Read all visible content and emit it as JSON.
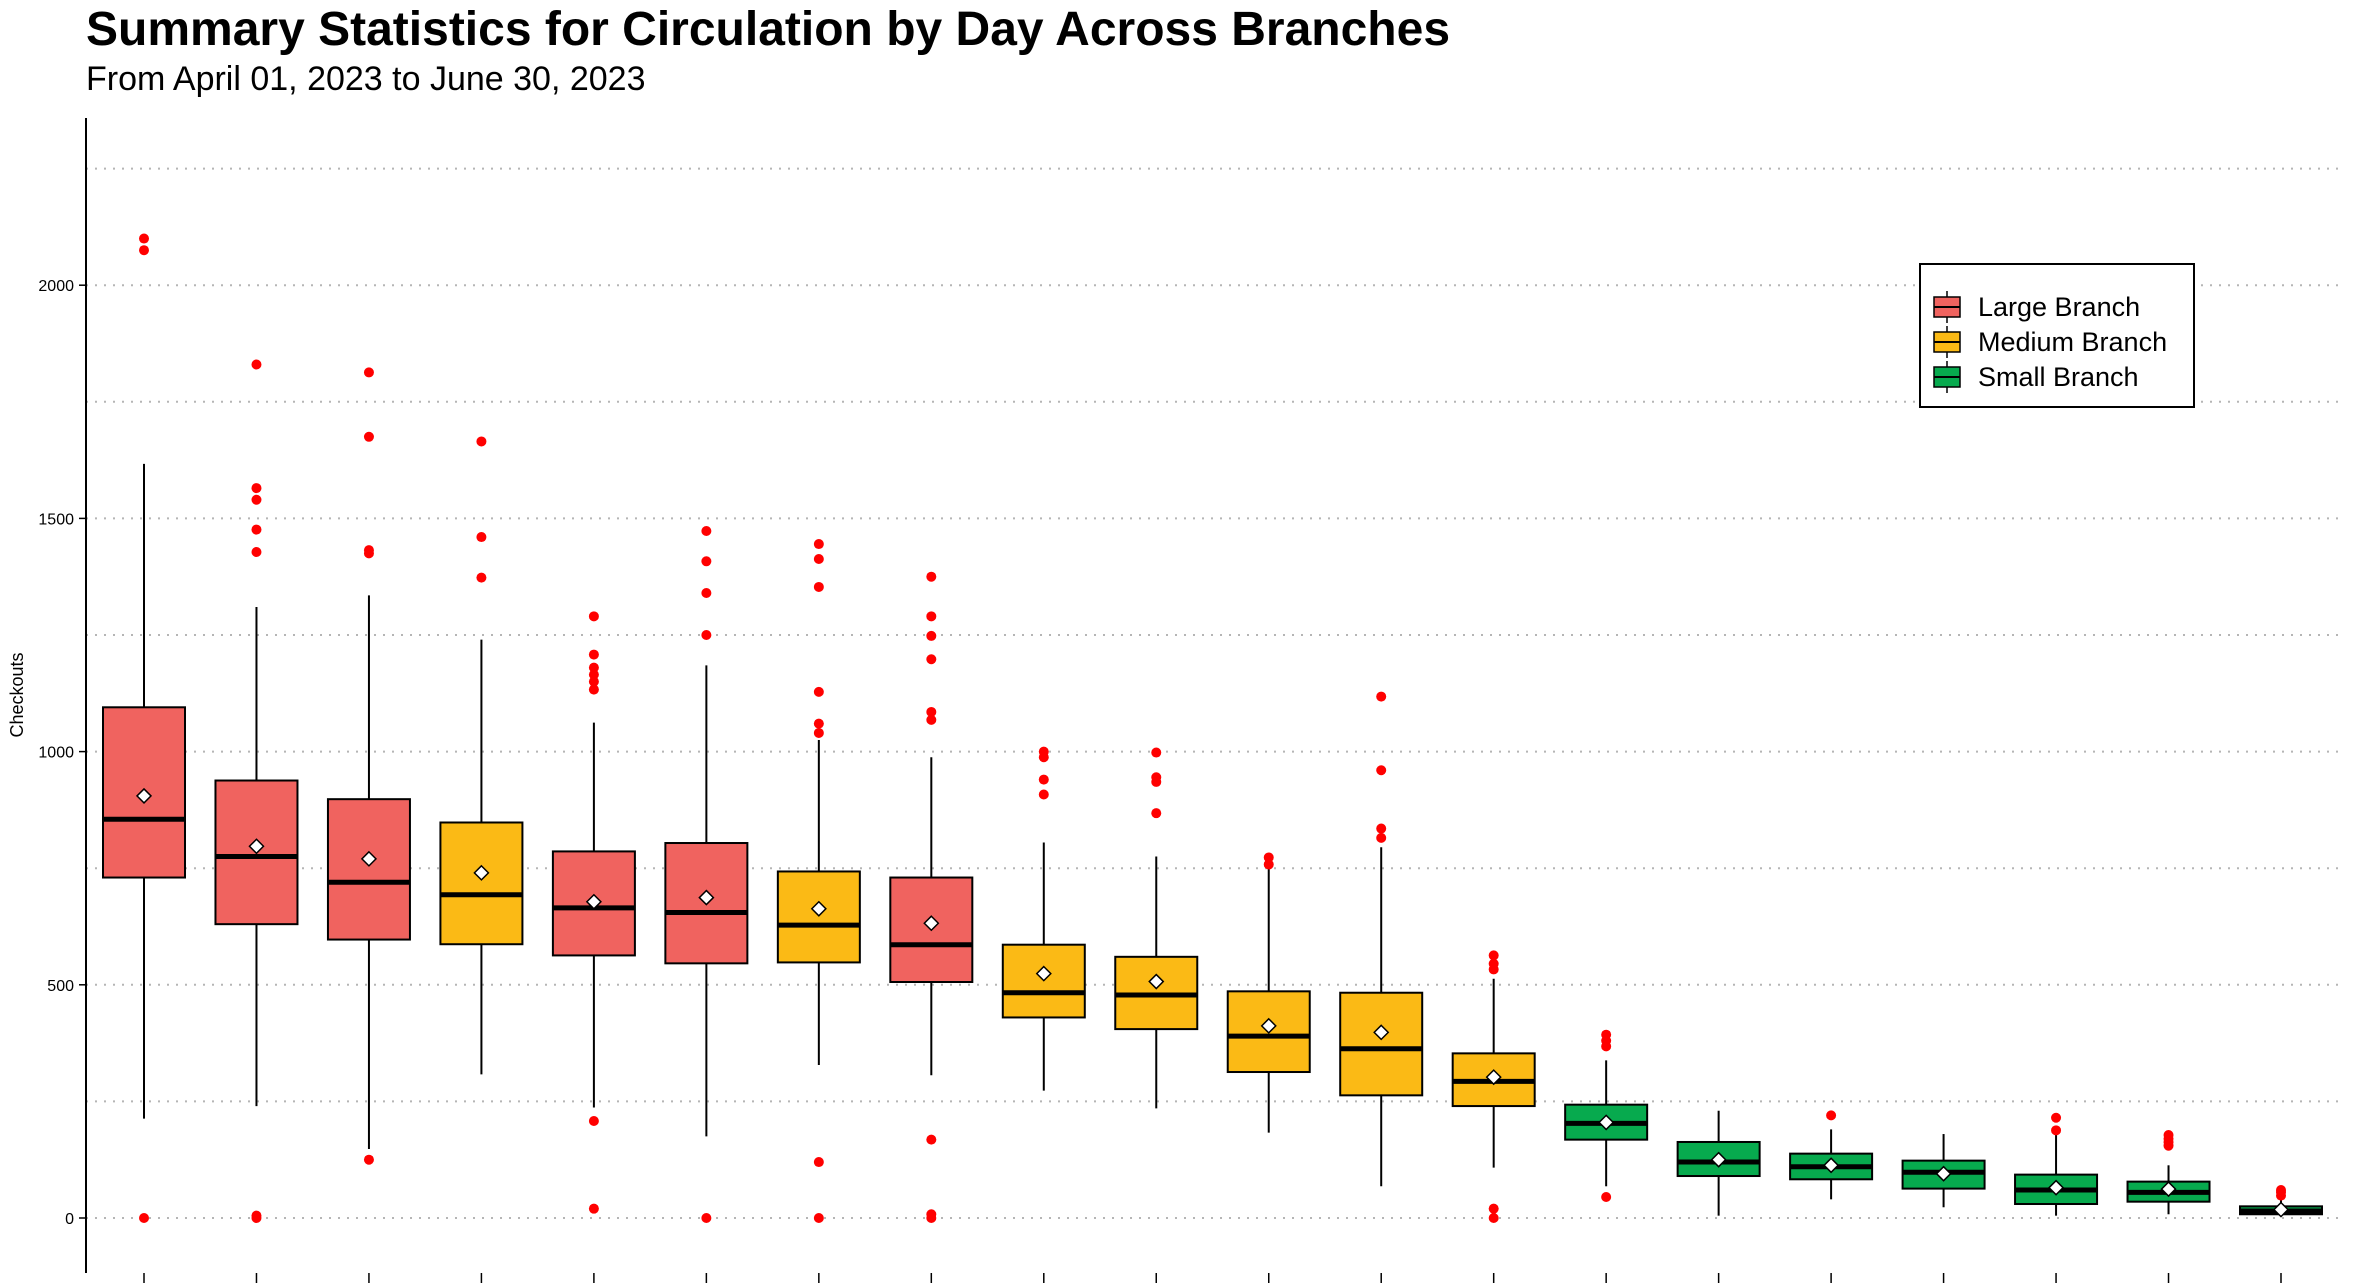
{
  "chart_data": {
    "type": "box",
    "title": "Summary Statistics for Circulation by Day Across Branches",
    "subtitle": "From April 01, 2023 to June 30, 2023",
    "ylabel": "Checkouts",
    "xlabel": "",
    "ylim": [
      0,
      2250
    ],
    "yticks": [
      0,
      500,
      1000,
      1500,
      2000
    ],
    "grid": "horizontal dotted",
    "legend_position": "top-right",
    "legend": [
      {
        "name": "Large Branch",
        "color": "#F0635F"
      },
      {
        "name": "Medium Branch",
        "color": "#FBBA15"
      },
      {
        "name": "Small Branch",
        "color": "#07AA4E"
      }
    ],
    "outlier_color": "#FF0000",
    "series": [
      {
        "group": "Large Branch",
        "whisker_low": 213,
        "q1": 730,
        "median": 855,
        "q3": 1095,
        "whisker_high": 1617,
        "mean": 905,
        "outliers": [
          0,
          2075,
          2100
        ]
      },
      {
        "group": "Large Branch",
        "whisker_low": 240,
        "q1": 630,
        "median": 775,
        "q3": 938,
        "whisker_high": 1310,
        "mean": 797,
        "outliers": [
          0,
          5,
          1428,
          1476,
          1540,
          1565,
          1830
        ]
      },
      {
        "group": "Large Branch",
        "whisker_low": 148,
        "q1": 597,
        "median": 720,
        "q3": 898,
        "whisker_high": 1335,
        "mean": 770,
        "outliers": [
          125,
          1425,
          1432,
          1675,
          1813
        ]
      },
      {
        "group": "Medium Branch",
        "whisker_low": 308,
        "q1": 587,
        "median": 693,
        "q3": 848,
        "whisker_high": 1240,
        "mean": 740,
        "outliers": [
          1373,
          1460,
          1665
        ]
      },
      {
        "group": "Large Branch",
        "whisker_low": 237,
        "q1": 563,
        "median": 665,
        "q3": 786,
        "whisker_high": 1062,
        "mean": 678,
        "outliers": [
          20,
          208,
          1133,
          1150,
          1165,
          1180,
          1208,
          1290
        ]
      },
      {
        "group": "Large Branch",
        "whisker_low": 175,
        "q1": 546,
        "median": 655,
        "q3": 804,
        "whisker_high": 1185,
        "mean": 687,
        "outliers": [
          0,
          1250,
          1340,
          1408,
          1473
        ]
      },
      {
        "group": "Medium Branch",
        "whisker_low": 328,
        "q1": 548,
        "median": 628,
        "q3": 743,
        "whisker_high": 1025,
        "mean": 663,
        "outliers": [
          0,
          120,
          1040,
          1060,
          1128,
          1353,
          1413,
          1445
        ]
      },
      {
        "group": "Large Branch",
        "whisker_low": 306,
        "q1": 506,
        "median": 586,
        "q3": 730,
        "whisker_high": 988,
        "mean": 632,
        "outliers": [
          0,
          8,
          168,
          1068,
          1085,
          1198,
          1248,
          1290,
          1375
        ]
      },
      {
        "group": "Medium Branch",
        "whisker_low": 273,
        "q1": 430,
        "median": 483,
        "q3": 586,
        "whisker_high": 805,
        "mean": 524,
        "outliers": [
          908,
          940,
          988,
          1000
        ]
      },
      {
        "group": "Medium Branch",
        "whisker_low": 235,
        "q1": 405,
        "median": 478,
        "q3": 560,
        "whisker_high": 775,
        "mean": 507,
        "outliers": [
          868,
          935,
          945,
          998
        ]
      },
      {
        "group": "Medium Branch",
        "whisker_low": 183,
        "q1": 313,
        "median": 390,
        "q3": 486,
        "whisker_high": 750,
        "mean": 412,
        "outliers": [
          758,
          773
        ]
      },
      {
        "group": "Medium Branch",
        "whisker_low": 68,
        "q1": 263,
        "median": 363,
        "q3": 483,
        "whisker_high": 795,
        "mean": 398,
        "outliers": [
          815,
          835,
          960,
          1118
        ]
      },
      {
        "group": "Medium Branch",
        "whisker_low": 108,
        "q1": 240,
        "median": 293,
        "q3": 353,
        "whisker_high": 513,
        "mean": 302,
        "outliers": [
          0,
          20,
          533,
          545,
          563
        ]
      },
      {
        "group": "Small Branch",
        "whisker_low": 68,
        "q1": 168,
        "median": 203,
        "q3": 243,
        "whisker_high": 338,
        "mean": 205,
        "outliers": [
          45,
          368,
          380,
          393
        ]
      },
      {
        "group": "Small Branch",
        "whisker_low": 5,
        "q1": 90,
        "median": 120,
        "q3": 163,
        "whisker_high": 230,
        "mean": 125,
        "outliers": []
      },
      {
        "group": "Small Branch",
        "whisker_low": 40,
        "q1": 83,
        "median": 110,
        "q3": 138,
        "whisker_high": 190,
        "mean": 113,
        "outliers": [
          220
        ]
      },
      {
        "group": "Small Branch",
        "whisker_low": 23,
        "q1": 63,
        "median": 98,
        "q3": 123,
        "whisker_high": 180,
        "mean": 95,
        "outliers": []
      },
      {
        "group": "Small Branch",
        "whisker_low": 5,
        "q1": 30,
        "median": 60,
        "q3": 93,
        "whisker_high": 180,
        "mean": 65,
        "outliers": [
          188,
          215
        ]
      },
      {
        "group": "Small Branch",
        "whisker_low": 8,
        "q1": 35,
        "median": 55,
        "q3": 78,
        "whisker_high": 113,
        "mean": 62,
        "outliers": [
          155,
          163,
          170,
          178
        ]
      },
      {
        "group": "Small Branch",
        "whisker_low": 3,
        "q1": 8,
        "median": 15,
        "q3": 25,
        "whisker_high": 40,
        "mean": 18,
        "outliers": [
          48,
          55,
          60
        ]
      }
    ]
  }
}
